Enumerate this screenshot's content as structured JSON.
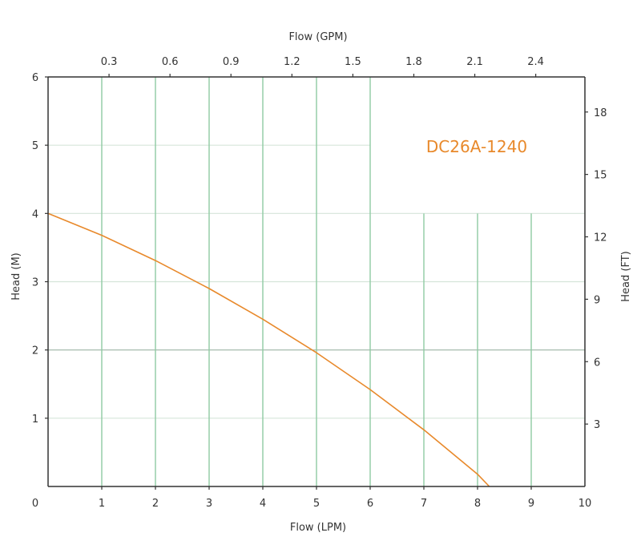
{
  "chart_data": {
    "type": "line",
    "title": "",
    "model_label": "DC26A-1240",
    "xlabel": "Flow (LPM)",
    "x2label": "Flow (GPM)",
    "ylabel": "Head (M)",
    "y2label": "Head (FT)",
    "xlim": [
      0,
      10
    ],
    "ylim": [
      0,
      6
    ],
    "x_ticks": [
      0,
      1,
      2,
      3,
      4,
      5,
      6,
      7,
      8,
      9,
      10
    ],
    "y_ticks": [
      1,
      2,
      3,
      4,
      5,
      6
    ],
    "y_zero_label": "0",
    "x2_ticks": [
      "0.3",
      "0.6",
      "0.9",
      "1.2",
      "1.5",
      "1.8",
      "2.1",
      "2.4"
    ],
    "y2_ticks": [
      "3",
      "6",
      "9",
      "12",
      "15",
      "18"
    ],
    "grid": true,
    "legend": "none",
    "series": [
      {
        "name": "DC26A-1240",
        "color": "#E8892B",
        "x": [
          0,
          1,
          2,
          3,
          4,
          5,
          6,
          7,
          8,
          8.22
        ],
        "y": [
          4.0,
          3.68,
          3.31,
          2.9,
          2.45,
          1.96,
          1.42,
          0.83,
          0.18,
          0.0
        ]
      }
    ]
  },
  "colors": {
    "curve": "#E8892B",
    "label": "#E8892B",
    "grid_vertical": "#8FCBA3",
    "grid_horizontal": "#D6E5DA",
    "grid_horizontal_major": "#9DB5A5",
    "axis": "#333333"
  }
}
